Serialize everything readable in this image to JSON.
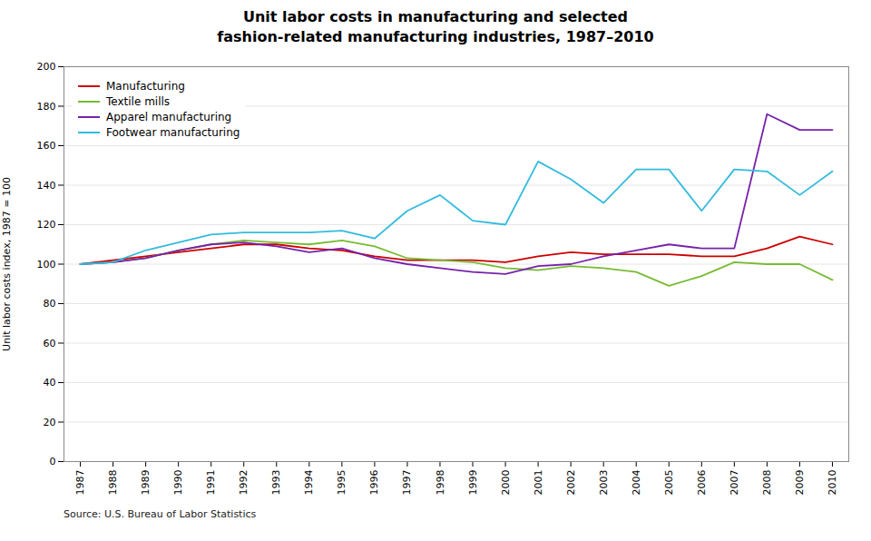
{
  "chart_data": {
    "type": "line",
    "title": "Unit labor costs in manufacturing and selected\nfashion-related manufacturing industries, 1987–2010",
    "ylabel": "Unit labor costs index, 1987 = 100",
    "annotations": [
      "Source: U.S. Bureau of Labor Statistics"
    ],
    "x": [
      1987,
      1988,
      1989,
      1990,
      1991,
      1992,
      1993,
      1994,
      1995,
      1996,
      1997,
      1998,
      1999,
      2000,
      2001,
      2002,
      2003,
      2004,
      2005,
      2006,
      2007,
      2008,
      2009,
      2010
    ],
    "series": [
      {
        "name": "Manufacturing",
        "color": "#cc0000",
        "values": [
          100,
          102,
          104,
          106,
          108,
          110,
          110,
          108,
          107,
          104,
          102,
          102,
          102,
          101,
          104,
          106,
          105,
          105,
          105,
          104,
          104,
          108,
          114,
          110
        ]
      },
      {
        "name": "Textile mills",
        "color": "#77bb33",
        "values": [
          100,
          101,
          103,
          107,
          110,
          112,
          111,
          110,
          112,
          109,
          103,
          102,
          101,
          98,
          97,
          99,
          98,
          96,
          89,
          94,
          101,
          100,
          100,
          92
        ]
      },
      {
        "name": "Apparel manufacturing",
        "color": "#7722aa",
        "values": [
          100,
          101,
          103,
          107,
          110,
          111,
          109,
          106,
          108,
          103,
          100,
          98,
          96,
          95,
          99,
          100,
          104,
          107,
          110,
          108,
          108,
          176,
          168,
          168
        ]
      },
      {
        "name": "Footwear manufacturing",
        "color": "#33bbdd",
        "values": [
          100,
          101,
          107,
          111,
          115,
          116,
          116,
          116,
          117,
          113,
          127,
          135,
          122,
          120,
          152,
          143,
          131,
          148,
          148,
          127,
          148,
          147,
          135,
          147
        ]
      }
    ],
    "xlim": [
      1986.5,
      2010.5
    ],
    "xticks": [
      1987,
      1988,
      1989,
      1990,
      1991,
      1992,
      1993,
      1994,
      1995,
      1996,
      1997,
      1998,
      1999,
      2000,
      2001,
      2002,
      2003,
      2004,
      2005,
      2006,
      2007,
      2008,
      2009,
      2010
    ],
    "ylim": [
      0,
      200
    ],
    "yticks": [
      0,
      20,
      40,
      60,
      80,
      100,
      120,
      140,
      160,
      180,
      200
    ],
    "grid": true,
    "legend": "upper left"
  }
}
